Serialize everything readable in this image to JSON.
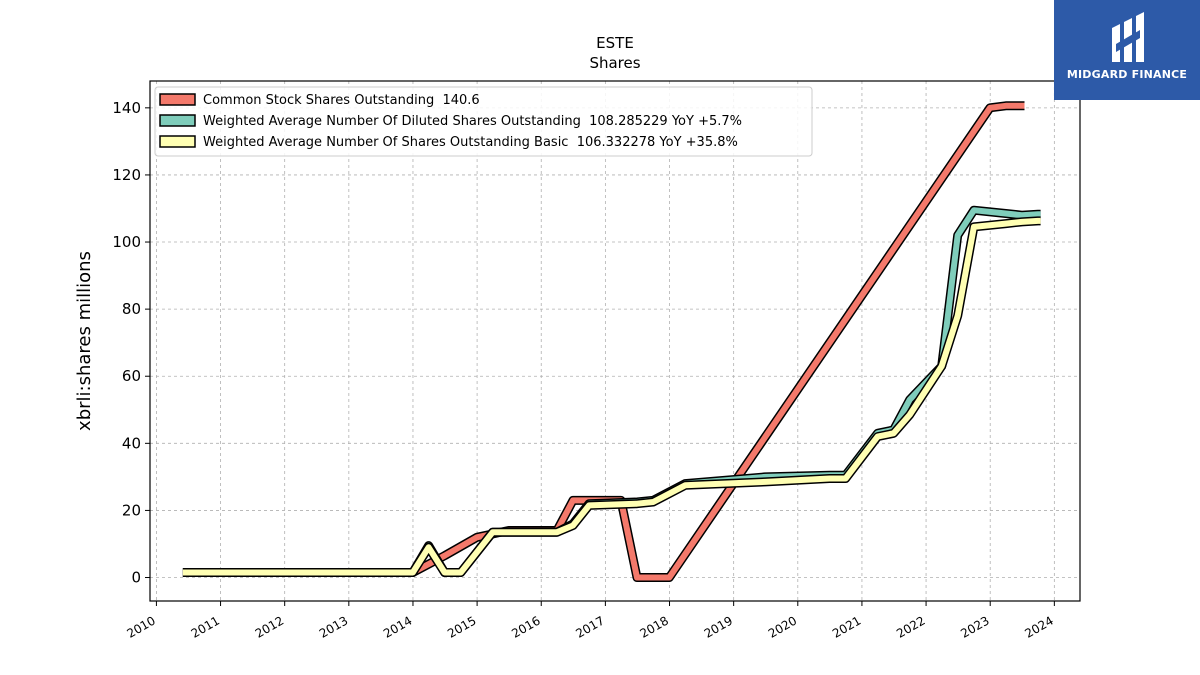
{
  "brand": {
    "name": "MIDGARD FINANCE",
    "color": "#2d5aa8"
  },
  "chart_data": {
    "type": "line",
    "title": "ESTE",
    "subtitle": "Shares",
    "xlabel": "",
    "ylabel": "xbrli:shares millions",
    "xlim": [
      2009.9,
      2024.4
    ],
    "ylim": [
      -7,
      148
    ],
    "yticks": [
      0,
      20,
      40,
      60,
      80,
      100,
      120,
      140
    ],
    "xticks": [
      "2010",
      "2011",
      "2012",
      "2013",
      "2014",
      "2015",
      "2016",
      "2017",
      "2018",
      "2019",
      "2020",
      "2021",
      "2022",
      "2023",
      "2024"
    ],
    "grid": true,
    "legend_position": "top-left",
    "series": [
      {
        "name": "Common Stock Shares Outstanding  140.6",
        "color": "#f4796b",
        "x": [
          "2010-06-01",
          "2013-12-31",
          "2014-06-30",
          "2014-12-31",
          "2015-06-30",
          "2016-03-31",
          "2016-06-30",
          "2016-12-31",
          "2017-03-31",
          "2017-06-30",
          "2017-12-31",
          "2022-12-31",
          "2023-03-31",
          "2023-07-15"
        ],
        "y": [
          1.5,
          1.5,
          6.5,
          12.0,
          14.0,
          14.0,
          23.0,
          23.0,
          23.0,
          0.0,
          0.0,
          140.0,
          140.6,
          140.6
        ]
      },
      {
        "name": "Weighted Average Number Of Diluted Shares Outstanding  108.285229 YoY +5.7%",
        "color": "#7fcdbb",
        "x": [
          "2010-06-01",
          "2013-12-31",
          "2014-03-31",
          "2014-06-30",
          "2014-09-30",
          "2015-03-31",
          "2016-03-31",
          "2016-06-30",
          "2016-09-30",
          "2017-06-30",
          "2017-09-30",
          "2018-03-31",
          "2019-06-30",
          "2020-06-30",
          "2020-09-30",
          "2021-03-31",
          "2021-06-30",
          "2021-09-30",
          "2022-03-31",
          "2022-06-30",
          "2022-09-30",
          "2023-03-31",
          "2023-06-30",
          "2023-09-30",
          "2023-10-15"
        ],
        "y": [
          1.5,
          1.5,
          9.5,
          1.5,
          1.5,
          13.5,
          13.5,
          16.0,
          22.0,
          22.5,
          23.0,
          28.0,
          30.0,
          30.5,
          30.5,
          43.0,
          44.0,
          53.0,
          63.0,
          102.0,
          109.5,
          108.5,
          108.0,
          108.3,
          108.3
        ]
      },
      {
        "name": "Weighted Average Number Of Shares Outstanding Basic  106.332278 YoY +35.8%",
        "color": "#ffffb3",
        "x": [
          "2010-06-01",
          "2013-12-31",
          "2014-03-31",
          "2014-06-30",
          "2014-09-30",
          "2015-03-31",
          "2016-03-31",
          "2016-06-30",
          "2016-09-30",
          "2017-06-30",
          "2017-09-30",
          "2018-03-31",
          "2019-06-30",
          "2020-06-30",
          "2020-09-30",
          "2021-03-31",
          "2021-06-30",
          "2021-09-30",
          "2022-03-31",
          "2022-06-30",
          "2022-09-30",
          "2023-03-31",
          "2023-06-30",
          "2023-09-30",
          "2023-10-15"
        ],
        "y": [
          1.5,
          1.5,
          9.0,
          1.5,
          1.5,
          13.5,
          13.5,
          15.5,
          21.5,
          22.0,
          22.5,
          27.5,
          28.5,
          29.5,
          29.5,
          42.0,
          43.0,
          48.5,
          63.0,
          78.0,
          104.5,
          105.5,
          106.0,
          106.3,
          106.3
        ]
      }
    ]
  }
}
